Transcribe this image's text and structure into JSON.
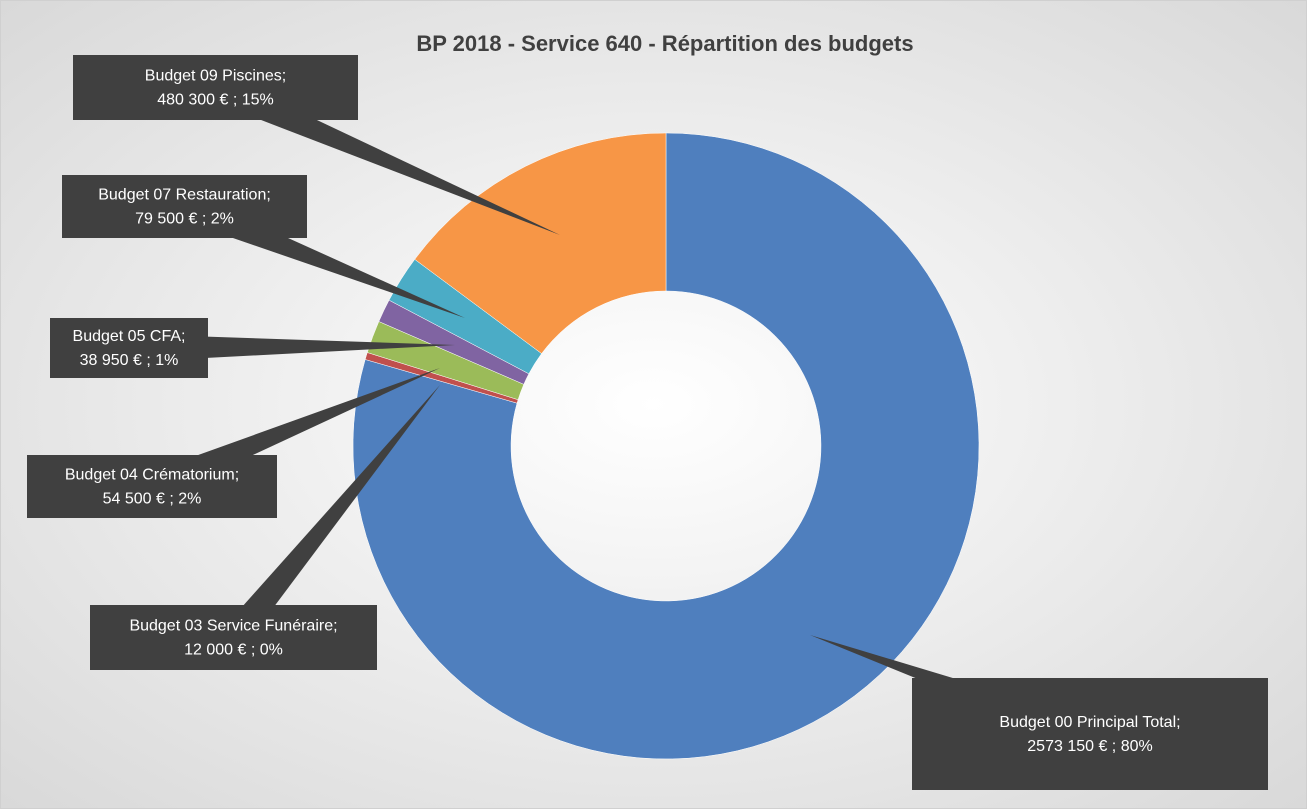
{
  "chart_data": {
    "type": "donut",
    "title": "BP 2018 - Service 640 - Répartition des budgets",
    "categories": [
      "Budget 00 Principal Total;",
      "Budget 03 Service Funéraire;",
      "Budget 04 Crématorium;",
      "Budget 05 CFA;",
      "Budget 07 Restauration;",
      "Budget 09 Piscines;"
    ],
    "values": [
      2573150,
      12000,
      54500,
      38950,
      79500,
      480300
    ],
    "value_labels": [
      "2573 150 € ; 80%",
      "12 000 € ; 0%",
      "54 500 € ; 2%",
      "38 950 € ; 1%",
      "79 500 € ; 2%",
      "480 300 € ; 15%"
    ],
    "colors": [
      "#4f7fbe",
      "#c0504d",
      "#9bbb59",
      "#8064a2",
      "#4bacc6",
      "#f79646"
    ]
  }
}
